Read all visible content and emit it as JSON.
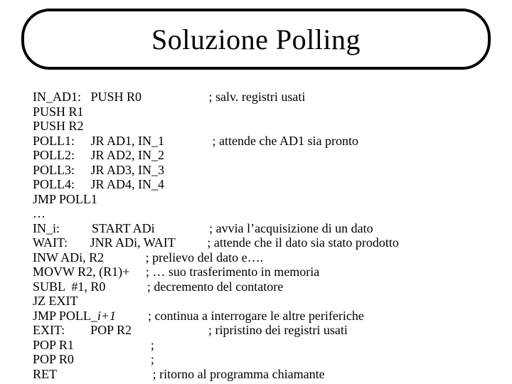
{
  "title": "Soluzione Polling",
  "code_lines": [
    "IN_AD1:   PUSH R0                     ; salv. registri usati",
    "PUSH R1",
    "PUSH R2",
    "POLL1:     JR AD1, IN_1               ; attende che AD1 sia pronto",
    "POLL2:     JR AD2, IN_2",
    "POLL3:     JR AD3, IN_3",
    "POLL4:     JR AD4, IN_4",
    "JMP POLL1",
    "…",
    "IN_i:          START ADi                 ; avvia l’acquisizione di un dato",
    "WAIT:       JNR ADi, WAIT          ; attende che il dato sia stato prodotto",
    "INW ADi, R2             ; prelievo del dato e….",
    "MOVW R2, (R1)+     ; … suo trasferimento in memoria",
    "SUBL  #1, R0             ; decremento del contatore",
    "JZ EXIT",
    "JMP POLL_i+1          ; continua a interrogare le altre periferiche",
    "EXIT:        POP R2                        ; ripristino dei registri usati",
    "POP R1                        ;",
    "POP R0                        ;",
    "RET                              ; ritorno al programma chiamante"
  ],
  "italic_lines": [
    15
  ],
  "colors": {
    "background": "#ffffff",
    "text": "#000000",
    "border": "#000000"
  },
  "fonts": {
    "family": "Times New Roman",
    "title_size_pt": 40,
    "body_size_pt": 18
  }
}
